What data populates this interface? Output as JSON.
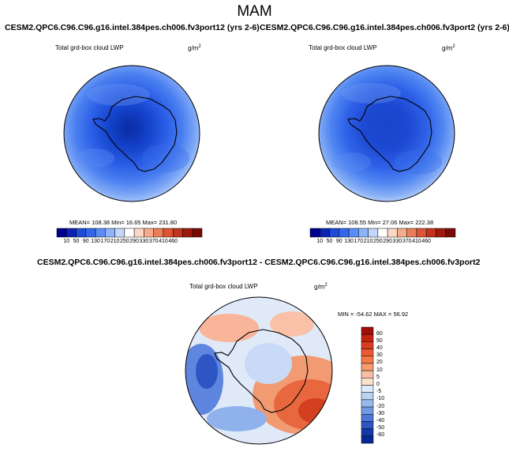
{
  "title": "MAM",
  "panels": [
    {
      "experiment": "CESM2.QPC6.C96.C96.g16.intel.384pes.ch006.fv3port12 (yrs 2-6)",
      "variable": "Total grd-box cloud LWP",
      "units_base": "g/m",
      "units_exp": "2",
      "stats": "MEAN= 108.38  Min=  16.65  Max= 231.80"
    },
    {
      "experiment": "CESM2.QPC6.C96.C96.g16.intel.384pes.ch006.fv3port2 (yrs 2-6)",
      "variable": "Total grd-box cloud LWP",
      "units_base": "g/m",
      "units_exp": "2",
      "stats": "MEAN= 108.55  Min=  27.06  Max= 222.38"
    },
    {
      "experiment": "CESM2.QPC6.C96.C96.g16.intel.384pes.ch006.fv3port12 - CESM2.QPC6.C96.C96.g16.intel.384pes.ch006.fv3port2",
      "variable": "Total grd-box cloud LWP",
      "units_base": "g/m",
      "units_exp": "2",
      "stats": "MIN = -54.62 MAX = 56.92"
    }
  ],
  "colorbar_abs": {
    "labels": [
      "10",
      "50",
      "90",
      "130",
      "170",
      "210",
      "250",
      "290",
      "330",
      "370",
      "410",
      "460"
    ],
    "colors": [
      "#00008c",
      "#0a23b4",
      "#1e4bd7",
      "#3268eb",
      "#5a8cf5",
      "#8cb4fa",
      "#c3d7fc",
      "#ffffff",
      "#fcd8c3",
      "#f5ac8a",
      "#eb7d5a",
      "#dc5532",
      "#c3321e",
      "#a0190f",
      "#780a05"
    ]
  },
  "colorbar_diff": {
    "labels": [
      "60",
      "50",
      "40",
      "30",
      "20",
      "10",
      "5",
      "0",
      "-5",
      "-10",
      "-20",
      "-30",
      "-40",
      "-50",
      "-60"
    ],
    "colors": [
      "#a00f0a",
      "#c3230f",
      "#dc3c1e",
      "#eb5a32",
      "#f5784b",
      "#f79b73",
      "#fabea0",
      "#fde1cc",
      "#dceafa",
      "#b9d3f5",
      "#96b9ee",
      "#7399e3",
      "#4d78d7",
      "#2d55c3",
      "#143aaa",
      "#0a2890"
    ]
  }
}
